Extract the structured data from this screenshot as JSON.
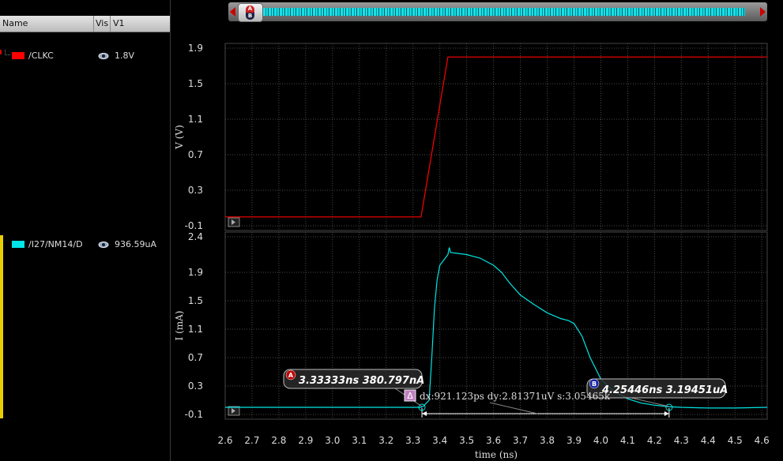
{
  "signal_panel": {
    "headers": {
      "name": "Name",
      "vis": "Vis",
      "v1": "V1"
    },
    "signals": [
      {
        "name": "/CLKC",
        "value": "1.8V",
        "color": "#ff0000"
      },
      {
        "name": "/I27/NM14/D",
        "value": "936.59uA",
        "color": "#00e5e5"
      }
    ]
  },
  "scrollbar": {
    "thumb_label": "A\nB"
  },
  "chart_data": {
    "type": "line",
    "xlabel": "time (ns)",
    "xlim": [
      2.6,
      4.62
    ],
    "x_ticks": [
      "2.6",
      "2.7",
      "2.8",
      "2.9",
      "3.0",
      "3.1",
      "3.2",
      "3.3",
      "3.4",
      "3.5",
      "3.6",
      "3.7",
      "3.8",
      "3.9",
      "4.0",
      "4.1",
      "4.2",
      "4.3",
      "4.4",
      "4.5",
      "4.6"
    ],
    "grid": true,
    "panels": [
      {
        "ylabel": "V (V)",
        "ylim": [
          -0.1,
          1.9
        ],
        "y_ticks": [
          "1.9",
          "1.5",
          "1.1",
          "0.7",
          "0.3",
          "-0.1"
        ],
        "series": [
          {
            "name": "/CLKC",
            "color": "#ff0000",
            "x": [
              2.6,
              3.33,
              3.43,
              4.62
            ],
            "y": [
              0.0,
              0.0,
              1.8,
              1.8
            ]
          }
        ]
      },
      {
        "ylabel": "I (mA)",
        "ylim": [
          -0.1,
          2.4
        ],
        "y_ticks": [
          "2.4",
          "1.9",
          "1.5",
          "1.1",
          "0.7",
          "0.3",
          "-0.1"
        ],
        "series": [
          {
            "name": "/I27/NM14/D",
            "color": "#00e5e5",
            "x": [
              2.6,
              3.33,
              3.34,
              3.36,
              3.37,
              3.38,
              3.39,
              3.4,
              3.42,
              3.43,
              3.435,
              3.44,
              3.5,
              3.55,
              3.6,
              3.63,
              3.66,
              3.7,
              3.75,
              3.8,
              3.85,
              3.88,
              3.9,
              3.93,
              3.96,
              4.0,
              4.05,
              4.1,
              4.15,
              4.2,
              4.25,
              4.3,
              4.4,
              4.5,
              4.62
            ],
            "y": [
              0.0,
              0.0,
              0.02,
              0.1,
              0.7,
              1.4,
              1.8,
              2.0,
              2.1,
              2.15,
              2.25,
              2.18,
              2.15,
              2.1,
              2.0,
              1.9,
              1.75,
              1.58,
              1.45,
              1.33,
              1.25,
              1.22,
              1.18,
              1.0,
              0.7,
              0.4,
              0.22,
              0.12,
              0.06,
              0.03,
              0.01,
              0.0,
              -0.01,
              -0.01,
              0.0
            ]
          }
        ]
      }
    ],
    "markers": [
      {
        "id": "A",
        "label": "3.33333ns 380.797nA",
        "x": 3.33333,
        "y": 0.0004
      },
      {
        "id": "B",
        "label": "4.25446ns 3.19451uA",
        "x": 4.25446,
        "y": 0.003
      }
    ],
    "delta_label": "dx:921.123ps dy:2.81371uV s:3.05465k",
    "delta_icon": "Δ"
  }
}
